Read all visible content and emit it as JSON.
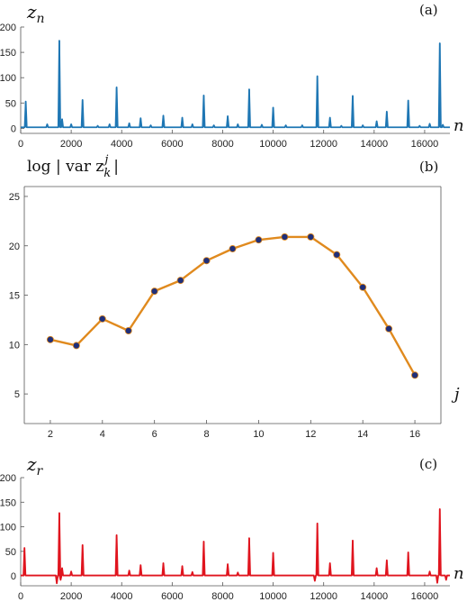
{
  "chart_data": [
    {
      "type": "line",
      "panel_tag": "(a)",
      "ylabel": "z",
      "ylabel_sub": "n",
      "xlabel": "n",
      "xlim": [
        0,
        17000
      ],
      "ylim": [
        -10,
        200
      ],
      "xticks": [
        0,
        2000,
        4000,
        6000,
        8000,
        10000,
        12000,
        14000,
        16000
      ],
      "yticks": [
        0,
        50,
        100,
        150,
        200
      ],
      "color": "#1f77b4",
      "baseline": 2,
      "spikes": [
        {
          "x": 200,
          "y": 53
        },
        {
          "x": 1050,
          "y": 8
        },
        {
          "x": 1530,
          "y": 173
        },
        {
          "x": 1640,
          "y": 18
        },
        {
          "x": 2000,
          "y": 8
        },
        {
          "x": 2450,
          "y": 56
        },
        {
          "x": 3050,
          "y": 5
        },
        {
          "x": 3520,
          "y": 8
        },
        {
          "x": 3800,
          "y": 81
        },
        {
          "x": 4300,
          "y": 10
        },
        {
          "x": 4750,
          "y": 20
        },
        {
          "x": 5150,
          "y": 6
        },
        {
          "x": 5650,
          "y": 25
        },
        {
          "x": 6400,
          "y": 21
        },
        {
          "x": 6800,
          "y": 8
        },
        {
          "x": 7250,
          "y": 65
        },
        {
          "x": 7650,
          "y": 6
        },
        {
          "x": 8200,
          "y": 24
        },
        {
          "x": 8600,
          "y": 8
        },
        {
          "x": 9050,
          "y": 77
        },
        {
          "x": 9550,
          "y": 7
        },
        {
          "x": 10000,
          "y": 41
        },
        {
          "x": 10500,
          "y": 6
        },
        {
          "x": 11150,
          "y": 6
        },
        {
          "x": 11750,
          "y": 103
        },
        {
          "x": 12250,
          "y": 21
        },
        {
          "x": 12700,
          "y": 5
        },
        {
          "x": 13150,
          "y": 64
        },
        {
          "x": 13550,
          "y": 6
        },
        {
          "x": 14100,
          "y": 14
        },
        {
          "x": 14500,
          "y": 33
        },
        {
          "x": 15350,
          "y": 55
        },
        {
          "x": 15800,
          "y": 5
        },
        {
          "x": 16200,
          "y": 9
        },
        {
          "x": 16600,
          "y": 168
        },
        {
          "x": 16720,
          "y": 7
        }
      ]
    },
    {
      "type": "line",
      "panel_tag": "(b)",
      "ylabel": "log | var  z",
      "ylabel_sub": "k",
      "ylabel_sup": "j",
      "ylabel_end": "|",
      "xlabel": "j",
      "xlim": [
        1,
        17
      ],
      "ylim": [
        2,
        26
      ],
      "xticks": [
        2,
        4,
        6,
        8,
        10,
        12,
        14,
        16
      ],
      "yticks": [
        5,
        10,
        15,
        20,
        25
      ],
      "line_color": "#e08a1e",
      "marker_color": "#1f2f7a",
      "x": [
        2,
        3,
        4,
        5,
        6,
        7,
        8,
        9,
        10,
        11,
        12,
        13,
        14,
        15,
        16
      ],
      "y": [
        10.5,
        9.9,
        12.6,
        11.4,
        15.4,
        16.5,
        18.5,
        19.7,
        20.6,
        20.9,
        20.9,
        19.1,
        15.8,
        11.6,
        6.9
      ]
    },
    {
      "type": "line",
      "panel_tag": "(c)",
      "ylabel": "z",
      "ylabel_sub": "r",
      "xlabel": "n",
      "xlim": [
        0,
        17000
      ],
      "ylim": [
        -20,
        200
      ],
      "xticks": [
        0,
        2000,
        4000,
        6000,
        8000,
        10000,
        12000,
        14000,
        16000
      ],
      "yticks": [
        0,
        50,
        100,
        150,
        200
      ],
      "color": "#e0141e",
      "baseline": 1,
      "spikes": [
        {
          "x": 150,
          "y": 57
        },
        {
          "x": 1530,
          "y": 128
        },
        {
          "x": 1640,
          "y": 16
        },
        {
          "x": 2000,
          "y": 9
        },
        {
          "x": 2450,
          "y": 63
        },
        {
          "x": 3800,
          "y": 83
        },
        {
          "x": 4300,
          "y": 11
        },
        {
          "x": 4750,
          "y": 22
        },
        {
          "x": 5650,
          "y": 26
        },
        {
          "x": 6400,
          "y": 20
        },
        {
          "x": 6800,
          "y": 8
        },
        {
          "x": 7250,
          "y": 70
        },
        {
          "x": 8200,
          "y": 24
        },
        {
          "x": 8600,
          "y": 7
        },
        {
          "x": 9050,
          "y": 77
        },
        {
          "x": 10000,
          "y": 47
        },
        {
          "x": 11750,
          "y": 107
        },
        {
          "x": 12250,
          "y": 26
        },
        {
          "x": 13150,
          "y": 72
        },
        {
          "x": 14100,
          "y": 16
        },
        {
          "x": 14500,
          "y": 32
        },
        {
          "x": 15350,
          "y": 48
        },
        {
          "x": 16200,
          "y": 9
        },
        {
          "x": 16600,
          "y": 136
        }
      ],
      "dips": [
        {
          "x": 1430,
          "y": -15
        },
        {
          "x": 1580,
          "y": -8
        },
        {
          "x": 11650,
          "y": -10
        },
        {
          "x": 16500,
          "y": -14
        },
        {
          "x": 16850,
          "y": -8
        }
      ]
    }
  ]
}
